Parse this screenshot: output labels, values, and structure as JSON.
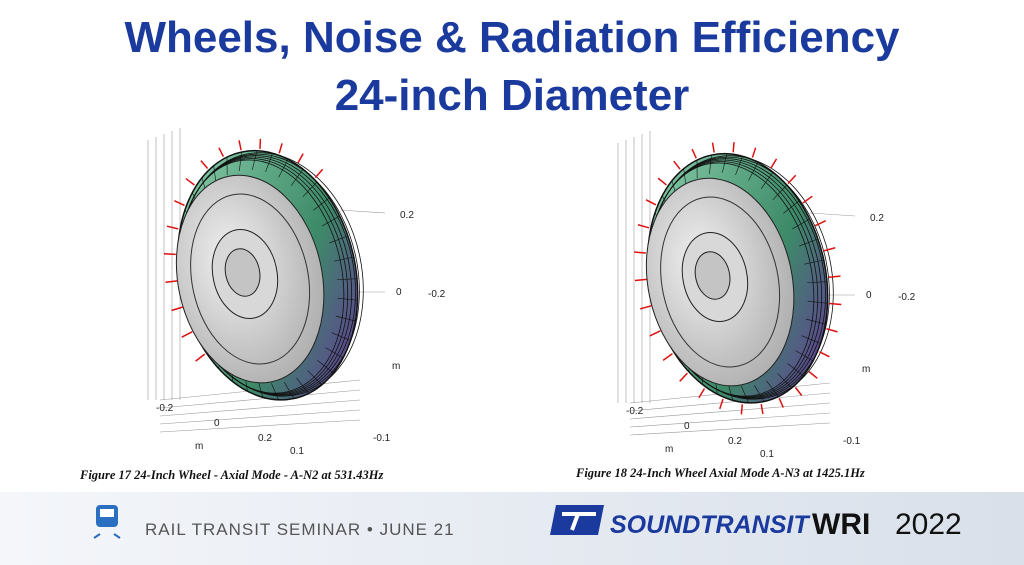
{
  "title": {
    "line1": "Wheels, Noise & Radiation Efficiency",
    "line2": "24-inch Diameter"
  },
  "figures": [
    {
      "axis_labels": [
        "0.2",
        "0",
        "-0.2",
        "m",
        "-0.2",
        "0",
        "0.2",
        "m",
        "0.1",
        "-0.1"
      ],
      "caption": "Figure 17 24-Inch Wheel - Axial Mode - A-N2 at 531.43Hz"
    },
    {
      "axis_labels": [
        "0.2",
        "0",
        "-0.2",
        "m",
        "-0.2",
        "0",
        "0.2",
        "m",
        "0.1",
        "-0.1"
      ],
      "caption": "Figure 18 24-Inch Wheel Axial Mode A-N3 at 1425.1Hz"
    }
  ],
  "footer": {
    "event": "RAIL TRANSIT SEMINAR • JUNE 21",
    "brand": "SOUNDTRANSIT",
    "org": "WRI",
    "year": "2022"
  }
}
